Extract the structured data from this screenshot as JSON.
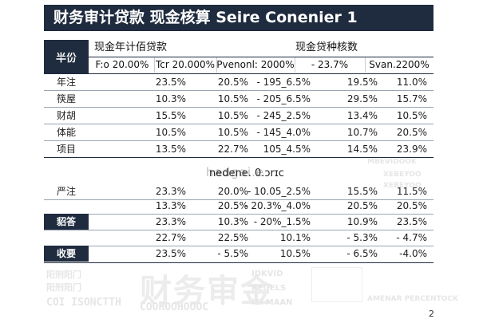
{
  "title": "财务审计贷款  现金核算 Seire Conenier 1",
  "header": {
    "row_header": "半份",
    "group1": "现金年计佰贷款",
    "group2": "现金贷种核数",
    "columns": [
      "F:o 20.00%",
      "Tcr 20.000%",
      "Pvenonl: 2000%",
      "- 23.7%",
      "Svan.2200%"
    ]
  },
  "section1": [
    {
      "label": "年注",
      "values": [
        "23.5%",
        "20.5%",
        "- 195_6.5%",
        "19.5%",
        "11.0%"
      ]
    },
    {
      "label": "筷屋",
      "values": [
        "10.3%",
        "10.5%",
        "- 205_6.5%",
        "29.5%",
        "15.7%"
      ]
    },
    {
      "label": "财胡",
      "values": [
        "15.5%",
        "10.5%",
        "- 245_2.5%",
        "13.4%",
        "10.5%"
      ]
    },
    {
      "label": "体能",
      "values": [
        "10.5%",
        "10.5%",
        "- 145_4.0%",
        "10.7%",
        "20.5%"
      ]
    },
    {
      "label": "项目",
      "values": [
        "13.5%",
        "22.7%",
        "105_4.5%",
        "14.5%",
        "23.9%"
      ]
    }
  ],
  "mid_label": "nedene. 0.ɔrɪc",
  "mid_ghost": "hadgai.e",
  "section2": [
    {
      "label": "严注",
      "values": [
        "23.3%",
        "20.0%",
        "- 10.05_2.5%",
        "15.5%",
        "11.5%"
      ]
    },
    {
      "label": "",
      "values": [
        "13.3%",
        "20.5%",
        "- 20.3%_4.0%",
        "20.5%",
        "20.5%"
      ]
    },
    {
      "label": "貂答",
      "values": [
        "23.3%",
        "10.3%",
        "- 20%_1.5%",
        "10.9%",
        "23.5%"
      ]
    },
    {
      "label": "",
      "values": [
        "22.7%",
        "22.5%",
        "10.1%",
        "- 5.3%",
        "- 4.7%"
      ]
    },
    {
      "label": "收要",
      "values": [
        "23.5%",
        "- 5.5%",
        "10.5%",
        "- 6.5%",
        "-4.0%"
      ]
    }
  ],
  "watermark": {
    "big": "财务审金",
    "small1": "阳刑阳门",
    "small2": "阳刑阳门",
    "small3": "COI ISONCTTH",
    "small4": "COOHOOHOOOC",
    "small5": "IDKVID",
    "small6": "REGELS",
    "small7": "IEI MAAN",
    "right1": "MBEVIDOOK",
    "right2": "XEBEYOO",
    "right3": "XEBEYOO",
    "right4": "AMENAR PERCENTOCK"
  },
  "page_number": "2"
}
